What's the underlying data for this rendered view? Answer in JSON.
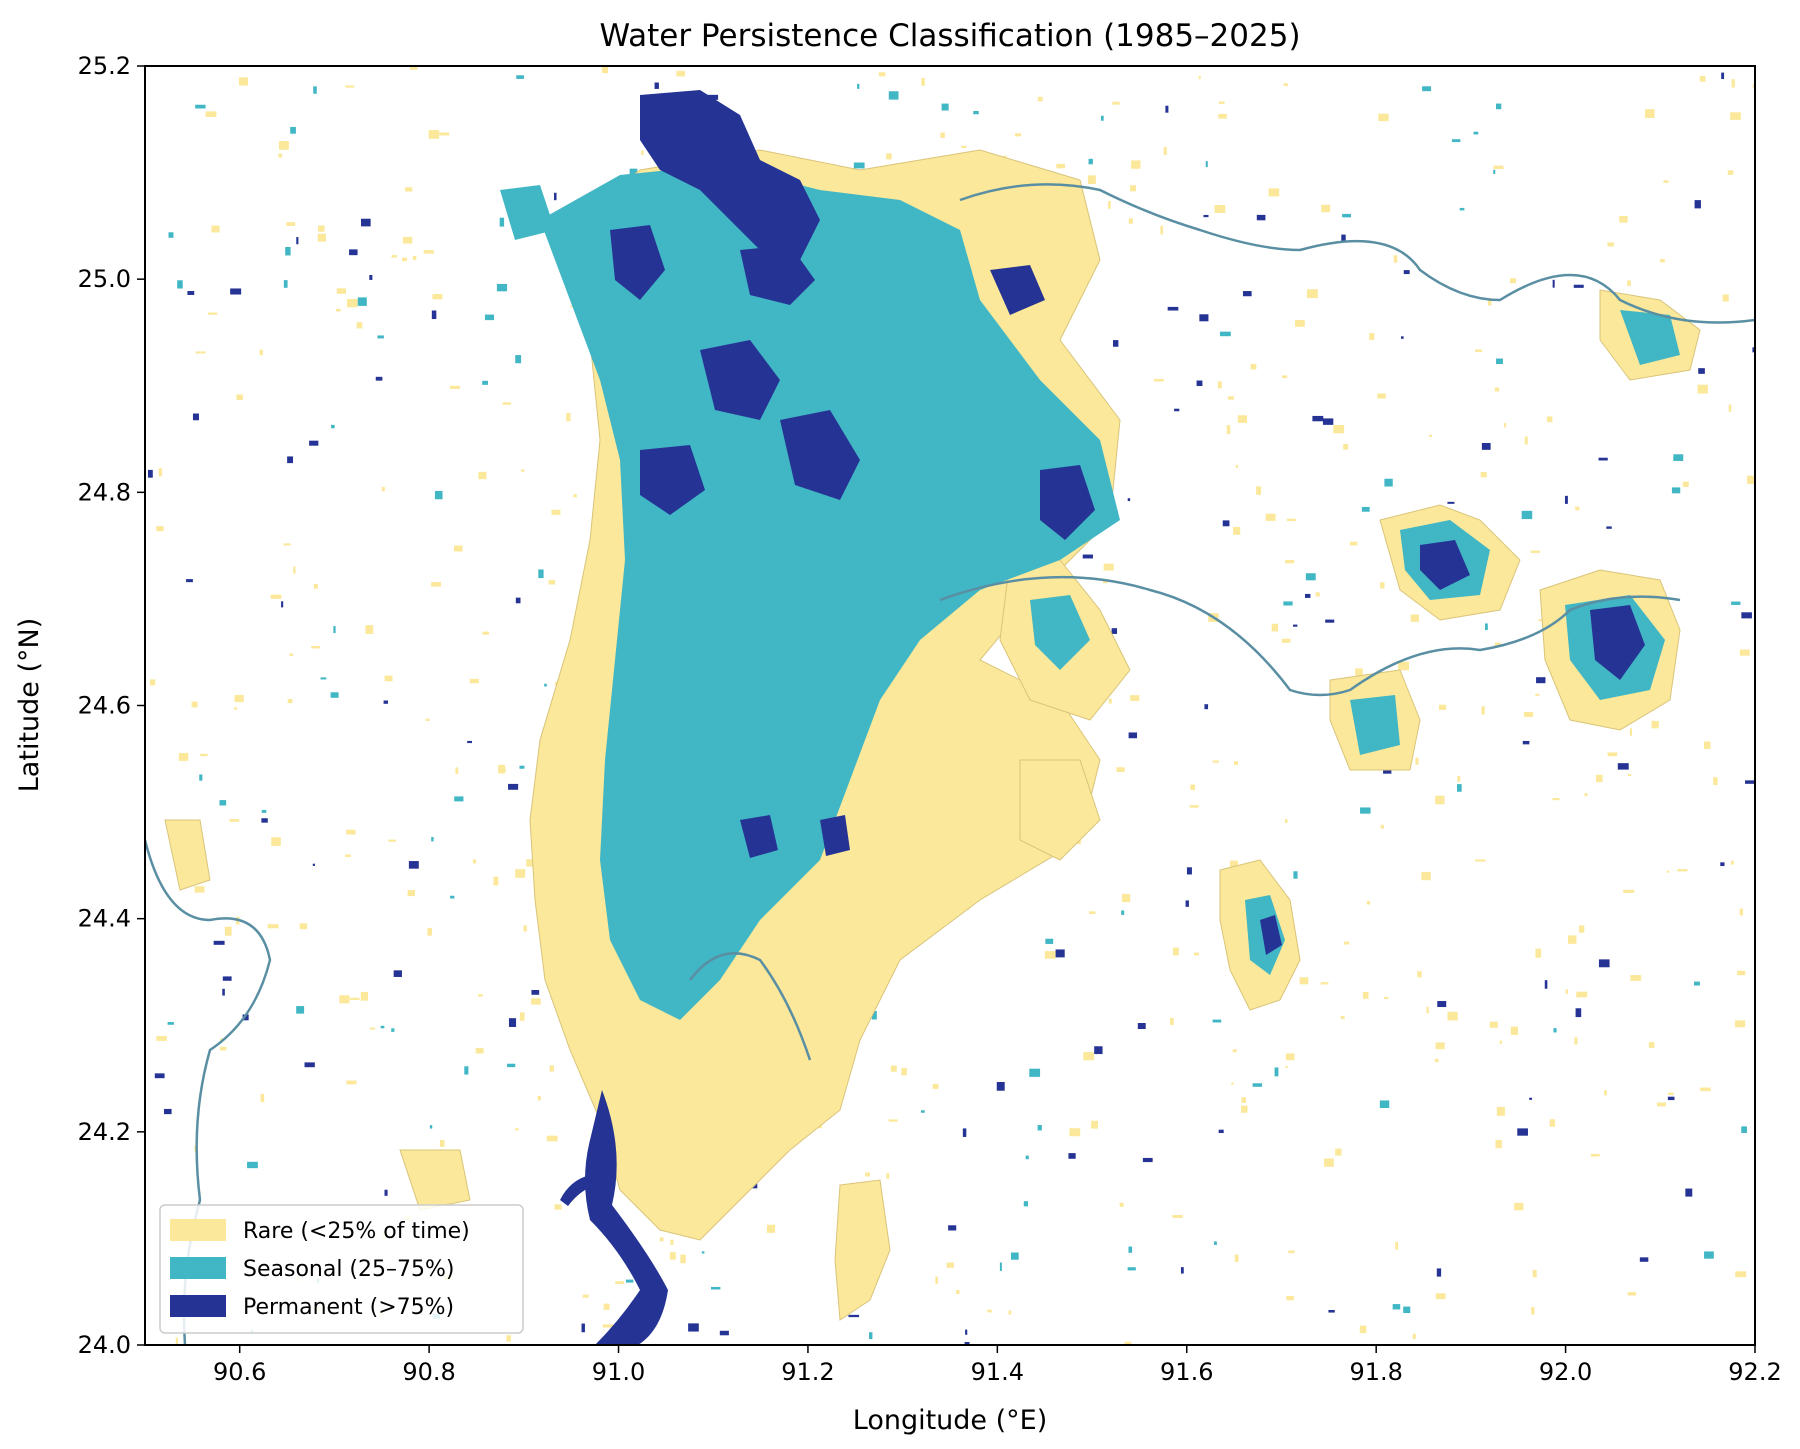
{
  "map": {
    "title": "Water Persistence Classification (1985–2025)",
    "xlabel": "Longitude (°E)",
    "ylabel": "Latitude (°N)",
    "xlim": [
      90.5,
      92.2
    ],
    "ylim": [
      24.0,
      25.2
    ],
    "xticks": [
      "90.6",
      "90.8",
      "91.0",
      "91.2",
      "91.4",
      "91.6",
      "91.8",
      "92.0",
      "92.2"
    ],
    "yticks": [
      "24.0",
      "24.2",
      "24.4",
      "24.6",
      "24.8",
      "25.0",
      "25.2"
    ],
    "legend_position": "lower-left",
    "legend": [
      {
        "label": "Rare (<25% of time)",
        "color": "#fbe89a"
      },
      {
        "label": "Seasonal (25–75%)",
        "color": "#41b6c4"
      },
      {
        "label": "Permanent (>75%)",
        "color": "#253494"
      }
    ]
  }
}
